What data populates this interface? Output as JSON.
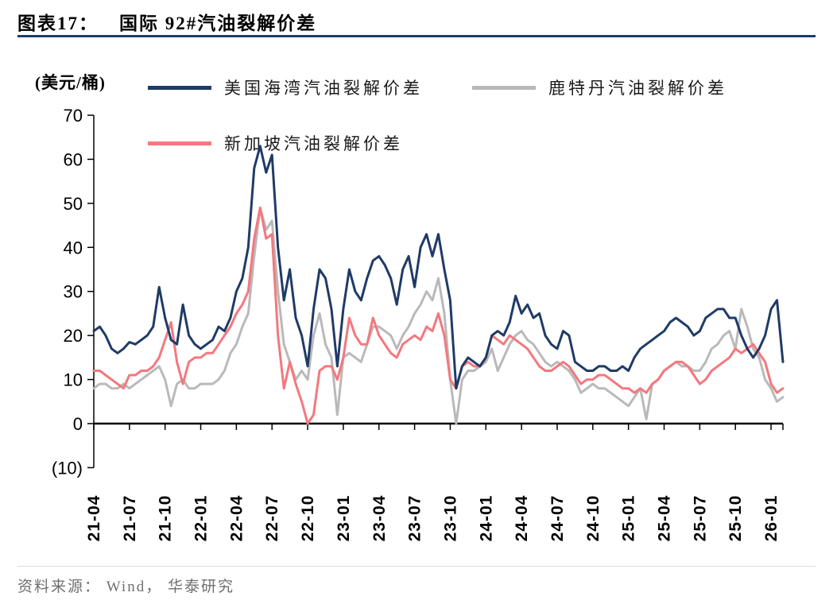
{
  "header": {
    "title_label": "图表17：",
    "title_text": "国际 92#汽油裂解价差"
  },
  "colors": {
    "accent_navy": "#1f3b66",
    "series_us": "#1f3b66",
    "series_rotterdam": "#b9b9b9",
    "series_singapore": "#f4787e"
  },
  "footer": {
    "source_text": "资料来源： Wind， 华泰研究"
  },
  "chart_data": {
    "type": "line",
    "title": "国际 92#汽油裂解价差",
    "unit_label": "(美元/桶)",
    "ylim": [
      -10,
      70
    ],
    "grid": "off",
    "legend_position": "top",
    "x_start": "2021-04",
    "x_end": "2026-02",
    "points_per_month": 2,
    "x_tick_labels": [
      "21-04",
      "21-07",
      "21-10",
      "22-01",
      "22-04",
      "22-07",
      "22-10",
      "23-01",
      "23-04",
      "23-07",
      "23-10",
      "24-01",
      "24-04",
      "24-07",
      "24-10",
      "25-01",
      "25-04",
      "25-07",
      "25-10",
      "26-01"
    ],
    "y_ticks": [
      {
        "label": "70",
        "value": 70
      },
      {
        "label": "60",
        "value": 60
      },
      {
        "label": "50",
        "value": 50
      },
      {
        "label": "40",
        "value": 40
      },
      {
        "label": "30",
        "value": 30
      },
      {
        "label": "20",
        "value": 20
      },
      {
        "label": "10",
        "value": 10
      },
      {
        "label": "0",
        "value": 0
      },
      {
        "label": "(10)",
        "value": -10
      }
    ],
    "series": [
      {
        "name": "美国海湾汽油裂解价差",
        "color": "#1f3b66",
        "values": [
          21,
          22,
          20,
          17,
          16,
          17,
          18.5,
          18,
          19,
          20,
          22,
          31,
          24,
          19,
          18,
          27,
          20,
          18,
          17,
          18,
          19,
          22,
          21,
          24,
          30,
          33,
          40,
          58,
          63,
          57,
          61,
          40,
          28,
          35,
          24,
          20,
          13,
          26,
          35,
          33,
          26,
          13,
          26,
          35,
          30,
          28,
          33,
          37,
          38,
          36,
          33,
          27,
          35,
          38,
          31,
          40,
          43,
          38,
          43,
          35,
          28,
          8,
          13,
          15,
          14,
          13,
          15,
          20,
          21,
          20,
          23,
          29,
          25,
          27,
          24,
          25,
          20,
          18,
          17,
          21,
          20,
          14,
          13,
          12,
          12,
          13,
          13,
          12,
          12,
          13,
          12,
          15,
          17,
          18,
          19,
          20,
          21,
          23,
          24,
          23,
          22,
          20,
          21,
          24,
          25,
          26,
          26,
          24,
          24,
          20,
          17,
          15,
          17,
          20,
          26,
          28,
          14
        ]
      },
      {
        "name": "鹿特丹汽油裂解价差",
        "color": "#b9b9b9",
        "values": [
          8,
          9,
          9,
          8,
          8,
          9,
          8,
          9,
          10,
          11,
          12,
          13,
          10,
          4,
          9,
          10,
          8,
          8,
          9,
          9,
          9,
          10,
          12,
          16,
          18,
          22,
          25,
          38,
          49,
          44,
          46,
          30,
          18,
          14,
          10,
          12,
          10,
          20,
          25,
          18,
          15,
          2,
          15,
          16,
          15,
          14,
          18,
          22,
          22,
          21,
          20,
          17,
          20,
          22,
          25,
          27,
          30,
          28,
          33,
          25,
          10,
          0,
          10,
          12,
          12,
          13,
          14,
          17,
          12,
          15,
          18,
          20,
          21,
          19,
          18,
          16,
          14,
          13,
          14,
          13,
          12,
          10,
          7,
          8,
          9,
          8,
          8,
          7,
          6,
          5,
          4,
          6,
          8,
          1,
          9,
          10,
          12,
          13,
          14,
          13,
          13,
          12,
          12,
          14,
          17,
          18,
          20,
          21,
          17,
          26,
          22,
          17,
          15,
          10,
          8,
          5,
          6
        ]
      },
      {
        "name": "新加坡汽油裂解价差",
        "color": "#f4787e",
        "values": [
          12,
          12,
          11,
          10,
          9,
          8,
          11,
          11,
          12,
          12,
          13,
          15,
          19,
          23,
          14,
          9,
          14,
          15,
          15,
          16,
          16,
          18,
          20,
          22,
          25,
          27,
          30,
          42,
          49,
          42,
          43,
          20,
          8,
          14,
          9,
          5,
          0,
          2,
          12,
          13,
          13,
          10,
          15,
          24,
          20,
          18,
          18,
          24,
          20,
          18,
          16,
          15,
          18,
          19,
          20,
          19,
          22,
          21,
          25,
          20,
          10,
          8,
          13,
          14,
          13,
          13,
          15,
          20,
          19,
          18,
          20,
          19,
          18,
          17,
          15,
          13,
          12,
          12,
          13,
          14,
          13,
          11,
          9,
          10,
          10,
          11,
          11,
          10,
          9,
          8,
          8,
          7,
          8,
          7,
          9,
          10,
          12,
          13,
          14,
          14,
          13,
          11,
          9,
          10,
          12,
          13,
          14,
          15,
          17,
          16,
          17,
          18,
          16,
          14,
          9,
          7,
          8
        ]
      }
    ]
  }
}
